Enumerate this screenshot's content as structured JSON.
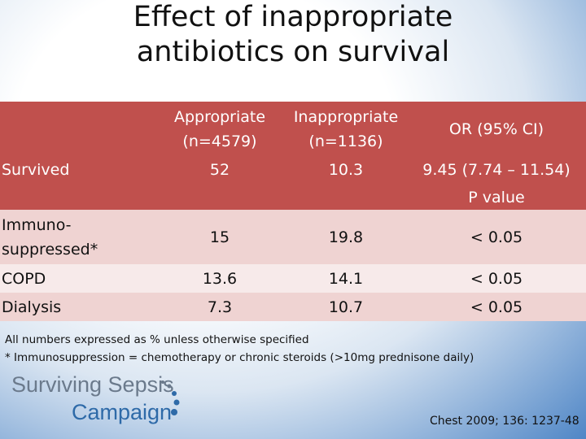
{
  "title": "Effect of inappropriate antibiotics on survival",
  "table": {
    "header": [
      [
        "Appropriate",
        "(n=4579)"
      ],
      [
        "Inappropriate",
        "(n=1136)"
      ],
      [
        "OR (95% CI)"
      ]
    ],
    "survived": [
      "Survived",
      "52",
      "10.3",
      "9.45 (7.74 – 11.54)"
    ],
    "subheader": "P value",
    "rows": [
      [
        [
          "Immuno-",
          "suppressed*"
        ],
        "15",
        "19.8",
        "< 0.05"
      ],
      [
        [
          "COPD"
        ],
        "13.6",
        "14.1",
        "< 0.05"
      ],
      [
        [
          "Dialysis"
        ],
        "7.3",
        "10.7",
        "< 0.05"
      ]
    ]
  },
  "footnotes": [
    "All numbers expressed as % unless otherwise specified",
    "* Immunosuppression = chemotherapy or chronic steroids (>10mg prednisone daily)"
  ],
  "logo": [
    "Surviving Sepsis",
    "Campaign"
  ],
  "citation": "Chest 2009; 136: 1237-48"
}
